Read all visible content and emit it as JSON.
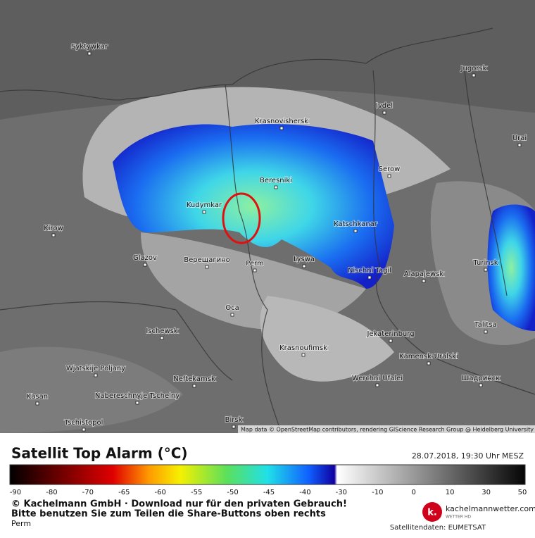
{
  "map": {
    "cities": [
      "Syktywkar",
      "Jugorsk",
      "Ivdel",
      "Krasnovishersk",
      "Urai",
      "Serow",
      "Beresniki",
      "Kudymkar",
      "Kirow",
      "Katschkanar",
      "Glazov",
      "Верещагино",
      "Perm",
      "Lyswa",
      "Nischni Tagil",
      "Alapajewsk",
      "Turinsk",
      "Oca",
      "Ischewsk",
      "Talitsa",
      "Jekaterinburg",
      "Krasnoufimsk",
      "Kamensk-Uralski",
      "Wjatskije Poljany",
      "Neftekamsk",
      "Werchni Ufalei",
      "Шадринск",
      "Nabereschnyje Tschelny",
      "Kasan",
      "Tschistopol",
      "Birsk"
    ],
    "attribution": "Map data © OpenStreetMap contributors, rendering GIScience Research Group @ Heidelberg University"
  },
  "legend": {
    "title": "Satellit Top Alarm (°C)",
    "datetime": "28.07.2018, 19:30 Uhr MESZ",
    "ticks": [
      -90,
      -80,
      -70,
      -65,
      -60,
      -55,
      -50,
      -45,
      -40,
      -30,
      -10,
      0,
      10,
      30,
      50
    ]
  },
  "footer": {
    "copyright": "© Kachelmann GmbH · Download nur für den privaten Gebrauch!",
    "share_note": "Bitte benutzen Sie zum Teilen die Share-Buttons oben rechts",
    "location": "Perm",
    "logo_letter": "k.",
    "logo_site": "kachelmannwetter.com",
    "logo_sub": "WETTER HD",
    "source": "Satellitendaten: EUMETSAT"
  }
}
